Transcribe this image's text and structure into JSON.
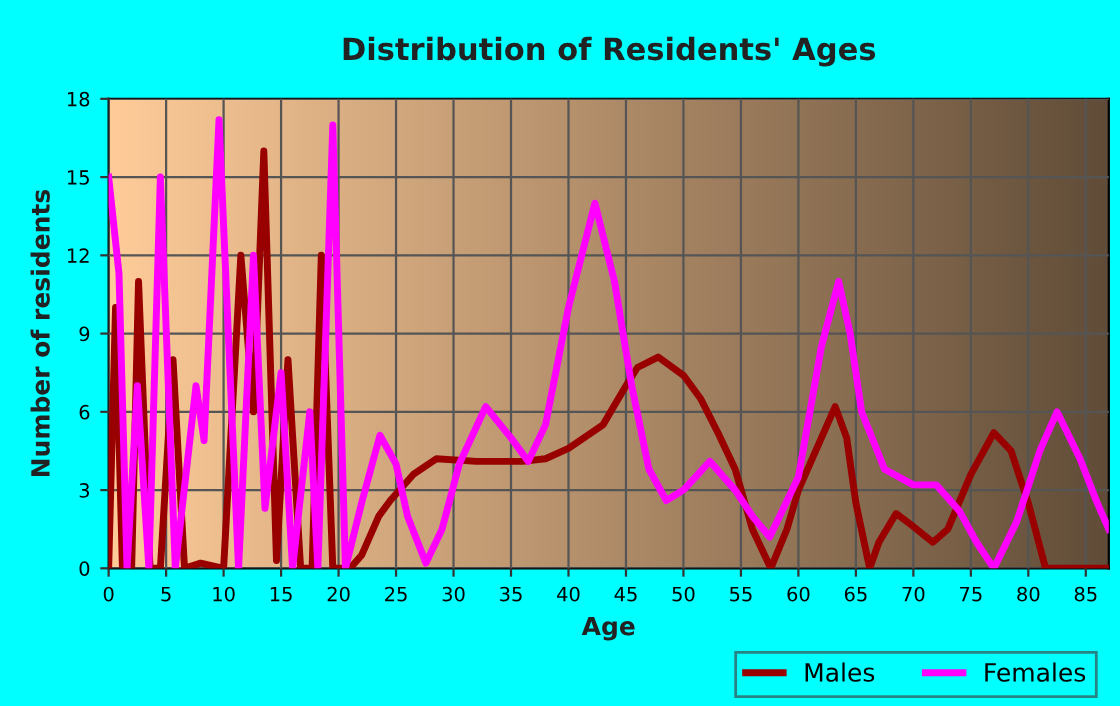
{
  "chart_data": {
    "type": "line",
    "title": "Distribution of Residents' Ages",
    "xlabel": "Age",
    "ylabel": "Number of residents",
    "xlim": [
      0,
      87
    ],
    "xticks": [
      0,
      5,
      10,
      15,
      20,
      25,
      30,
      35,
      40,
      45,
      50,
      55,
      60,
      65,
      70,
      75,
      80,
      85
    ],
    "ylim": [
      0,
      18
    ],
    "yticks": [
      0,
      3,
      6,
      9,
      12,
      15,
      18
    ],
    "grid": true,
    "legend": "bottom",
    "marker": "none",
    "line_style": "solid",
    "series": [
      {
        "name": "Males",
        "color": "#990000",
        "x": [
          0,
          0.6,
          1.2,
          2,
          2.6,
          3.6,
          4.5,
          5.6,
          6.6,
          8,
          10,
          11.5,
          12.6,
          13.5,
          14.6,
          15.6,
          16.7,
          17.7,
          18.5,
          19.5,
          21,
          22,
          23.5,
          24.5,
          26.5,
          28.5,
          32,
          36,
          38,
          40,
          43,
          45,
          46,
          47.8,
          50,
          51.5,
          53,
          54.5,
          56,
          57.6,
          59,
          60,
          62,
          63.2,
          64.2,
          65,
          66.2,
          67,
          68.5,
          70,
          71.7,
          73,
          75,
          77,
          78.5,
          80,
          81.5,
          87
        ],
        "values": [
          0,
          10,
          0,
          0,
          11,
          0,
          0,
          8,
          0,
          0.2,
          0,
          12,
          6,
          16,
          0.3,
          8,
          0,
          0,
          12,
          0,
          0,
          0.5,
          2,
          2.6,
          3.6,
          4.2,
          4.1,
          4.1,
          4.2,
          4.6,
          5.5,
          7,
          7.7,
          8.1,
          7.4,
          6.5,
          5.2,
          3.8,
          1.5,
          0,
          1.5,
          3,
          5,
          6.2,
          5,
          2.5,
          0,
          1,
          2.1,
          1.6,
          1,
          1.5,
          3.6,
          5.2,
          4.5,
          2.5,
          0,
          0
        ]
      },
      {
        "name": "Females",
        "color": "#ff00ff",
        "x": [
          0,
          0.9,
          1.6,
          2.5,
          3.5,
          4.5,
          5.8,
          7.6,
          8.3,
          9.6,
          11.3,
          12.6,
          13.6,
          15,
          16,
          17.5,
          18.2,
          19.5,
          20.6,
          22,
          23.6,
          25,
          26,
          27.6,
          29,
          30.5,
          32.8,
          35,
          36.5,
          38,
          40,
          42.3,
          44,
          45.5,
          47,
          48.5,
          50,
          52.3,
          54.5,
          56,
          57.5,
          60,
          62,
          63.5,
          64.5,
          65.5,
          67.5,
          70,
          72,
          74,
          75.5,
          77,
          79,
          81,
          82.5,
          84.5,
          86,
          87
        ],
        "values": [
          15,
          11.3,
          0,
          7,
          0,
          15,
          0,
          7,
          4.9,
          17.2,
          0,
          12,
          2.3,
          7.5,
          0,
          6,
          0,
          17,
          0,
          2.5,
          5.1,
          4,
          2,
          0.2,
          1.5,
          4,
          6.2,
          5,
          4.1,
          5.5,
          10,
          14,
          11,
          7,
          3.8,
          2.6,
          3,
          4.1,
          3,
          2,
          1.2,
          3.5,
          8.5,
          11,
          9,
          6,
          3.8,
          3.2,
          3.2,
          2.2,
          1,
          0,
          1.8,
          4.5,
          6,
          4.2,
          2.5,
          1.5
        ]
      }
    ]
  }
}
